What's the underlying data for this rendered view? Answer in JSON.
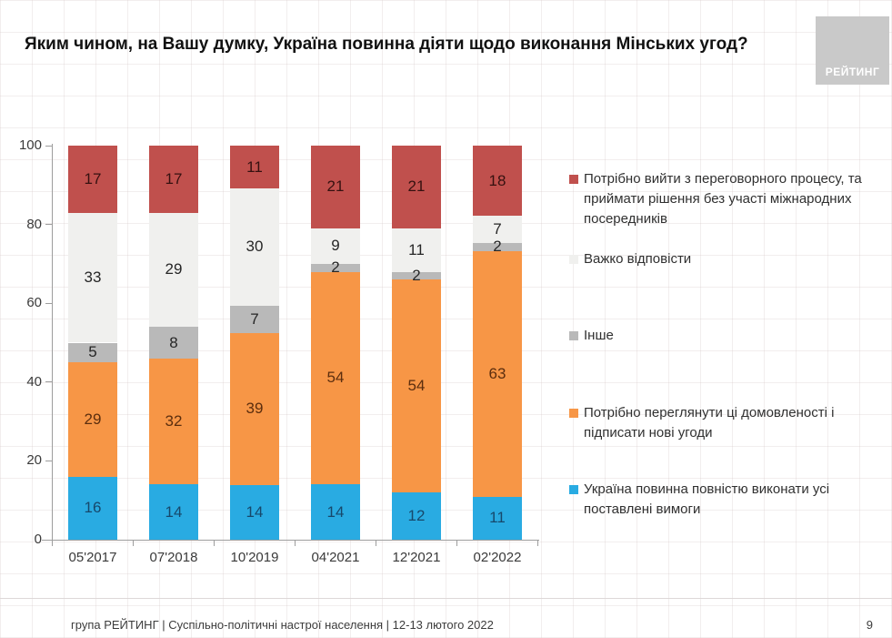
{
  "title": "Яким чином, на Вашу думку, Україна повинна діяти щодо виконання Мінських угод?",
  "logo": {
    "text": "РЕЙТИНГ"
  },
  "footer": {
    "text": "група РЕЙТИНГ | Суспільно-політичні настрої населення | 12-13 лютого 2022",
    "page": "9"
  },
  "chart_data": {
    "type": "bar",
    "stacked": true,
    "title": "Яким чином, на Вашу думку, Україна повинна діяти щодо виконання Мінських угод?",
    "categories": [
      "05'2017",
      "07'2018",
      "10'2019",
      "04'2021",
      "12'2021",
      "02'2022"
    ],
    "series": [
      {
        "name": "Україна повинна повністю виконати усі поставлені вимоги",
        "color": "#29abe2",
        "label_color": "#17486b",
        "values": [
          16,
          14,
          14,
          14,
          12,
          11
        ]
      },
      {
        "name": "Потрібно переглянути ці домовленості і підписати нові угоди",
        "color": "#f79646",
        "label_color": "#5c2e0e",
        "values": [
          29,
          32,
          39,
          54,
          54,
          63
        ]
      },
      {
        "name": "Інше",
        "color": "#b9b9b9",
        "label_color": "#262626",
        "values": [
          5,
          8,
          7,
          2,
          2,
          2
        ]
      },
      {
        "name": "Важко відповісти",
        "color": "#f0f0ee",
        "label_color": "#262626",
        "values": [
          33,
          29,
          30,
          9,
          11,
          7
        ]
      },
      {
        "name": "Потрібно вийти з переговорного процесу, та приймати рішення без участі міжнародних посередників",
        "color": "#c0504d",
        "label_color": "#351110",
        "values": [
          17,
          17,
          11,
          21,
          21,
          18
        ]
      }
    ],
    "legend_order": [
      4,
      3,
      2,
      1,
      0
    ],
    "legend_position": "right",
    "xlabel": "",
    "ylabel": "",
    "ylim": [
      0,
      100
    ],
    "y_ticks": [
      0,
      20,
      40,
      60,
      80,
      100
    ],
    "grid": false
  }
}
